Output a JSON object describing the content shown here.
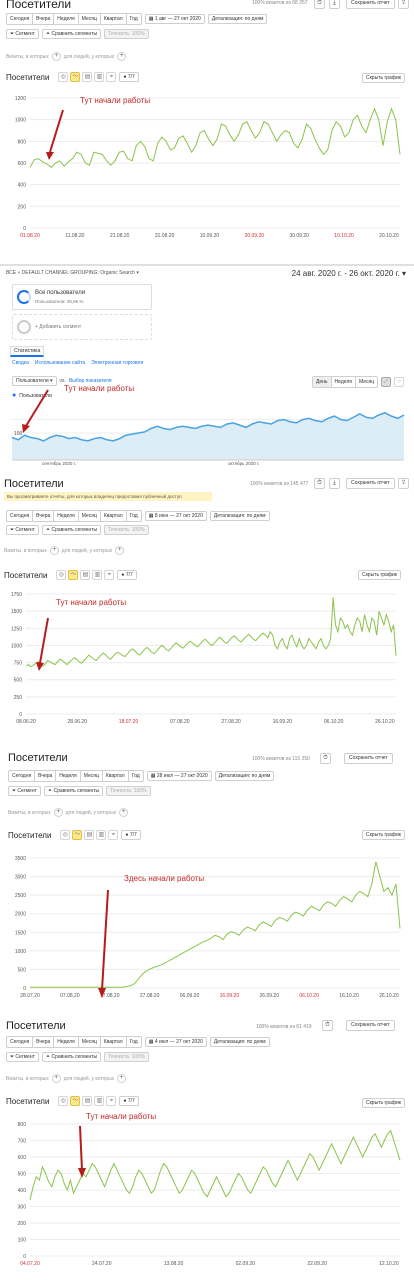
{
  "panels": [
    {
      "title": "Посетители",
      "meta": "100% визитов из 68 257",
      "save_label": "Сохранить отчет",
      "periods": [
        "Сегодня",
        "Вчера",
        "Неделя",
        "Месяц",
        "Квартал",
        "Год"
      ],
      "date_range": "1 авг — 27 окт 2020",
      "detail": "Детализация: по дням",
      "segment": "Сегмент",
      "compare": "Сравнить сегменты",
      "accuracy": "Точность: 100%",
      "visits_label": "Визиты, в которых",
      "people_label": "для людей, у которых",
      "chart_title": "Посетители",
      "series_count": "7/7",
      "hide_chart": "Скрыть график",
      "annotation": "Тут начали работы"
    },
    {
      "ga_header": "ВСЕ » DEFAULT CHANNEL GROUPING: Organic Search",
      "ga_range": "24 авг. 2020 г. - 26 окт. 2020 г.",
      "all_users": "Все пользователи",
      "all_users_sub": "Пользователи: 30,86 %",
      "add_segment": "+ Добавить сегмент",
      "stats_tab": "Статистика",
      "subtabs": [
        "Сводка",
        "Использование сайта",
        "Электронная торговля"
      ],
      "metric": "Пользователи",
      "vs": "vs.",
      "pick_metric": "Выбор показателя",
      "granularity": [
        "День",
        "Неделя",
        "Месяц"
      ],
      "legend": "Пользователи",
      "y_tick": "100",
      "x_ticks": [
        "сентябрь 2020 г.",
        "октябрь 2020 г."
      ],
      "annotation": "Тут начали работы"
    },
    {
      "title": "Посетители",
      "meta": "100% визитов из 145 477",
      "notice": "Вы просматриваете отчёты, для которых владелец предоставил публичный доступ.",
      "save_label": "Сохранить отчет",
      "periods": [
        "Сегодня",
        "Вчера",
        "Неделя",
        "Месяц",
        "Квартал",
        "Год"
      ],
      "date_range": "8 июн — 27 окт 2020",
      "detail": "Детализация: по дням",
      "segment": "Сегмент",
      "compare": "Сравнить сегменты",
      "accuracy": "Точность: 100%",
      "visits_label": "Визиты, в которых",
      "people_label": "для людей, у которых",
      "chart_title": "Посетители",
      "series_count": "7/7",
      "hide_chart": "Скрыть график",
      "annotation": "Тут начали работы"
    },
    {
      "title": "Посетители",
      "meta": "100% визитов из 115 250",
      "save_label": "Сохранить отчет",
      "periods": [
        "Сегодня",
        "Вчера",
        "Неделя",
        "Месяц",
        "Квартал",
        "Год"
      ],
      "date_range": "28 июл — 27 окт 2020",
      "detail": "Детализация: по дням",
      "segment": "Сегмент",
      "compare": "Сравнить сегменты",
      "accuracy": "Точность: 100%",
      "visits_label": "Визиты, в которых",
      "people_label": "для людей, у которых",
      "chart_title": "Посетители",
      "series_count": "7/7",
      "hide_chart": "Скрыть график",
      "annotation": "Здесь начали работы"
    },
    {
      "title": "Посетители",
      "meta": "100% визитов из 61 419",
      "save_label": "Сохранить отчет",
      "periods": [
        "Сегодня",
        "Вчера",
        "Неделя",
        "Месяц",
        "Квартал",
        "Год"
      ],
      "date_range": "4 июл — 27 окт 2020",
      "detail": "Детализация: по дням",
      "segment": "Сегмент",
      "compare": "Сравнить сегменты",
      "accuracy": "Точность: 100%",
      "visits_label": "Визиты, в которых",
      "people_label": "для людей, у которых",
      "chart_title": "Посетители",
      "series_count": "7/7",
      "hide_chart": "Скрыть график",
      "annotation": "Тут начали работы"
    }
  ],
  "chart_data": [
    {
      "type": "line",
      "color": "#8bc34a",
      "yticks": [
        0,
        200,
        400,
        600,
        800,
        1000,
        1200
      ],
      "ylim": [
        0,
        1200
      ],
      "xticks": [
        "01.08.20",
        "11.08.20",
        "21.08.20",
        "31.08.20",
        "10.09.20",
        "20.09.20",
        "30.09.20",
        "10.10.20",
        "20.10.20"
      ],
      "red_xticks": [
        0,
        5,
        7
      ],
      "values": [
        560,
        630,
        640,
        610,
        590,
        560,
        600,
        620,
        570,
        610,
        640,
        700,
        680,
        600,
        580,
        700,
        690,
        680,
        620,
        580,
        620,
        700,
        710,
        640,
        620,
        760,
        800,
        750,
        640,
        620,
        780,
        840,
        800,
        720,
        740,
        830,
        850,
        780,
        700,
        760,
        880,
        900,
        820,
        760,
        820,
        960,
        940,
        860,
        800,
        860,
        960,
        980,
        900,
        830,
        880,
        980,
        960,
        880,
        800,
        860,
        900,
        880,
        780,
        740,
        820,
        960,
        920,
        820,
        740,
        680,
        720,
        900,
        980,
        940,
        840,
        880,
        1000,
        1040,
        940,
        880,
        1000,
        1100,
        1000,
        760,
        980,
        1100,
        1000,
        680
      ]
    },
    {
      "type": "area",
      "color": "#4aa3df",
      "values": [
        100,
        90,
        110,
        100,
        95,
        85,
        100,
        110,
        105,
        95,
        100,
        90,
        85,
        95,
        100,
        90,
        85,
        95,
        110,
        115,
        120,
        125,
        140,
        150,
        140,
        135,
        145,
        150,
        145,
        140,
        150,
        155,
        150,
        145,
        160,
        165,
        155,
        145,
        160,
        170,
        165,
        160,
        175,
        180,
        170,
        165,
        180,
        185,
        175,
        170,
        185,
        195,
        180,
        175,
        190,
        205,
        190,
        185,
        200,
        210,
        195,
        185,
        200
      ]
    },
    {
      "type": "line",
      "color": "#8bc34a",
      "yticks": [
        0,
        250,
        500,
        750,
        1000,
        1250,
        1500,
        1750
      ],
      "ylim": [
        0,
        1750
      ],
      "xticks": [
        "08.06.20",
        "28.06.20",
        "18.07.20",
        "07.08.20",
        "27.08.20",
        "16.09.20",
        "06.10.20",
        "26.10.20"
      ],
      "red_xticks": [
        2
      ],
      "values": [
        700,
        720,
        690,
        710,
        740,
        760,
        720,
        700,
        730,
        780,
        760,
        740,
        720,
        760,
        800,
        780,
        750,
        720,
        760,
        790,
        820,
        800,
        760,
        740,
        780,
        820,
        860,
        830,
        800,
        780,
        820,
        860,
        890,
        860,
        820,
        800,
        840,
        880,
        900,
        880,
        850,
        840,
        880,
        920,
        950,
        920,
        880,
        860,
        900,
        940,
        970,
        940,
        900,
        880,
        920,
        960,
        1000,
        980,
        940,
        920,
        960,
        1000,
        1040,
        1010,
        980,
        960,
        1000,
        1040,
        1060,
        1030,
        1000,
        980,
        1020,
        1060,
        1090,
        1060,
        1020,
        1000,
        1040,
        1080,
        1120,
        1090,
        1050,
        1030,
        1070,
        1110,
        1140,
        1110,
        1070,
        1050,
        1090,
        1130,
        1160,
        1130,
        1090,
        1070,
        1110,
        1150,
        1180,
        1150,
        1110,
        1200,
        1150,
        1000,
        950,
        1050,
        1100,
        1000,
        950,
        1100,
        1150,
        1050,
        980,
        1100,
        1000,
        950,
        1000,
        1100,
        1050,
        1000,
        950,
        1050,
        1100,
        1000,
        950,
        1000,
        1100,
        1700,
        1300,
        1200,
        1400,
        1350,
        1250,
        1300,
        1200,
        1150,
        1300,
        1400,
        1350,
        1200,
        1450,
        1300,
        1200,
        1400,
        1350,
        1150,
        1500,
        1400,
        1300,
        1450,
        1350,
        1200,
        1300,
        850
      ]
    },
    {
      "type": "line",
      "color": "#8bc34a",
      "yticks": [
        0,
        500,
        1000,
        1500,
        2000,
        2500,
        3000,
        3500
      ],
      "ylim": [
        0,
        3500
      ],
      "xticks": [
        "28.07.20",
        "07.08.20",
        "17.08.20",
        "27.08.20",
        "06.09.20",
        "16.09.20",
        "26.09.20",
        "06.10.20",
        "16.10.20",
        "26.10.20"
      ],
      "red_xticks": [
        5,
        7
      ],
      "values": [
        20,
        20,
        20,
        20,
        20,
        20,
        20,
        20,
        20,
        20,
        20,
        20,
        20,
        20,
        20,
        20,
        20,
        20,
        20,
        20,
        20,
        20,
        20,
        20,
        40,
        60,
        120,
        250,
        380,
        460,
        520,
        560,
        600,
        640,
        700,
        760,
        820,
        880,
        940,
        1000,
        1060,
        1120,
        1180,
        1240,
        1280,
        1340,
        1420,
        1380,
        1300,
        1450,
        1520,
        1480,
        1420,
        1560,
        1640,
        1600,
        1540,
        1700,
        1780,
        1720,
        1660,
        1820,
        1900,
        1860,
        1800,
        1960,
        2040,
        2000,
        1940,
        2100,
        2200,
        2140,
        2080,
        2240,
        2320,
        2280,
        2200,
        2360,
        2460,
        2400,
        2320,
        2500,
        2600,
        2540,
        2460,
        2800,
        3400,
        3000,
        2600,
        2700,
        2500,
        2800,
        1600
      ]
    },
    {
      "type": "line",
      "color": "#8bc34a",
      "yticks": [
        0,
        100,
        200,
        300,
        400,
        500,
        600,
        700,
        800
      ],
      "ylim": [
        0,
        800
      ],
      "xticks": [
        "04.07.20",
        "24.07.20",
        "13.08.20",
        "02.09.20",
        "22.09.20",
        "12.10.20"
      ],
      "red_xticks": [
        0
      ],
      "values": [
        340,
        420,
        480,
        460,
        540,
        500,
        450,
        420,
        480,
        520,
        500,
        440,
        400,
        460,
        380,
        420,
        460,
        500,
        480,
        520,
        560,
        540,
        500,
        460,
        420,
        470,
        520,
        560,
        520,
        480,
        440,
        400,
        380,
        420,
        480,
        520,
        500,
        460,
        420,
        380,
        400,
        460,
        520,
        560,
        540,
        500,
        460,
        420,
        380,
        400,
        440,
        480,
        520,
        500,
        460,
        420,
        380,
        360,
        400,
        440,
        480,
        440,
        400,
        360,
        380,
        420,
        460,
        500,
        480,
        440,
        400,
        380,
        420,
        460,
        500,
        540,
        520,
        480,
        440,
        420,
        460,
        500,
        540,
        580,
        540,
        500,
        460,
        500,
        540,
        580,
        620,
        600,
        560,
        520,
        560,
        600,
        640,
        680,
        640,
        600,
        560,
        600,
        640,
        680,
        720,
        680,
        640,
        600,
        640,
        680,
        720,
        740,
        700,
        660,
        700,
        740,
        760,
        700,
        640,
        580
      ]
    }
  ]
}
